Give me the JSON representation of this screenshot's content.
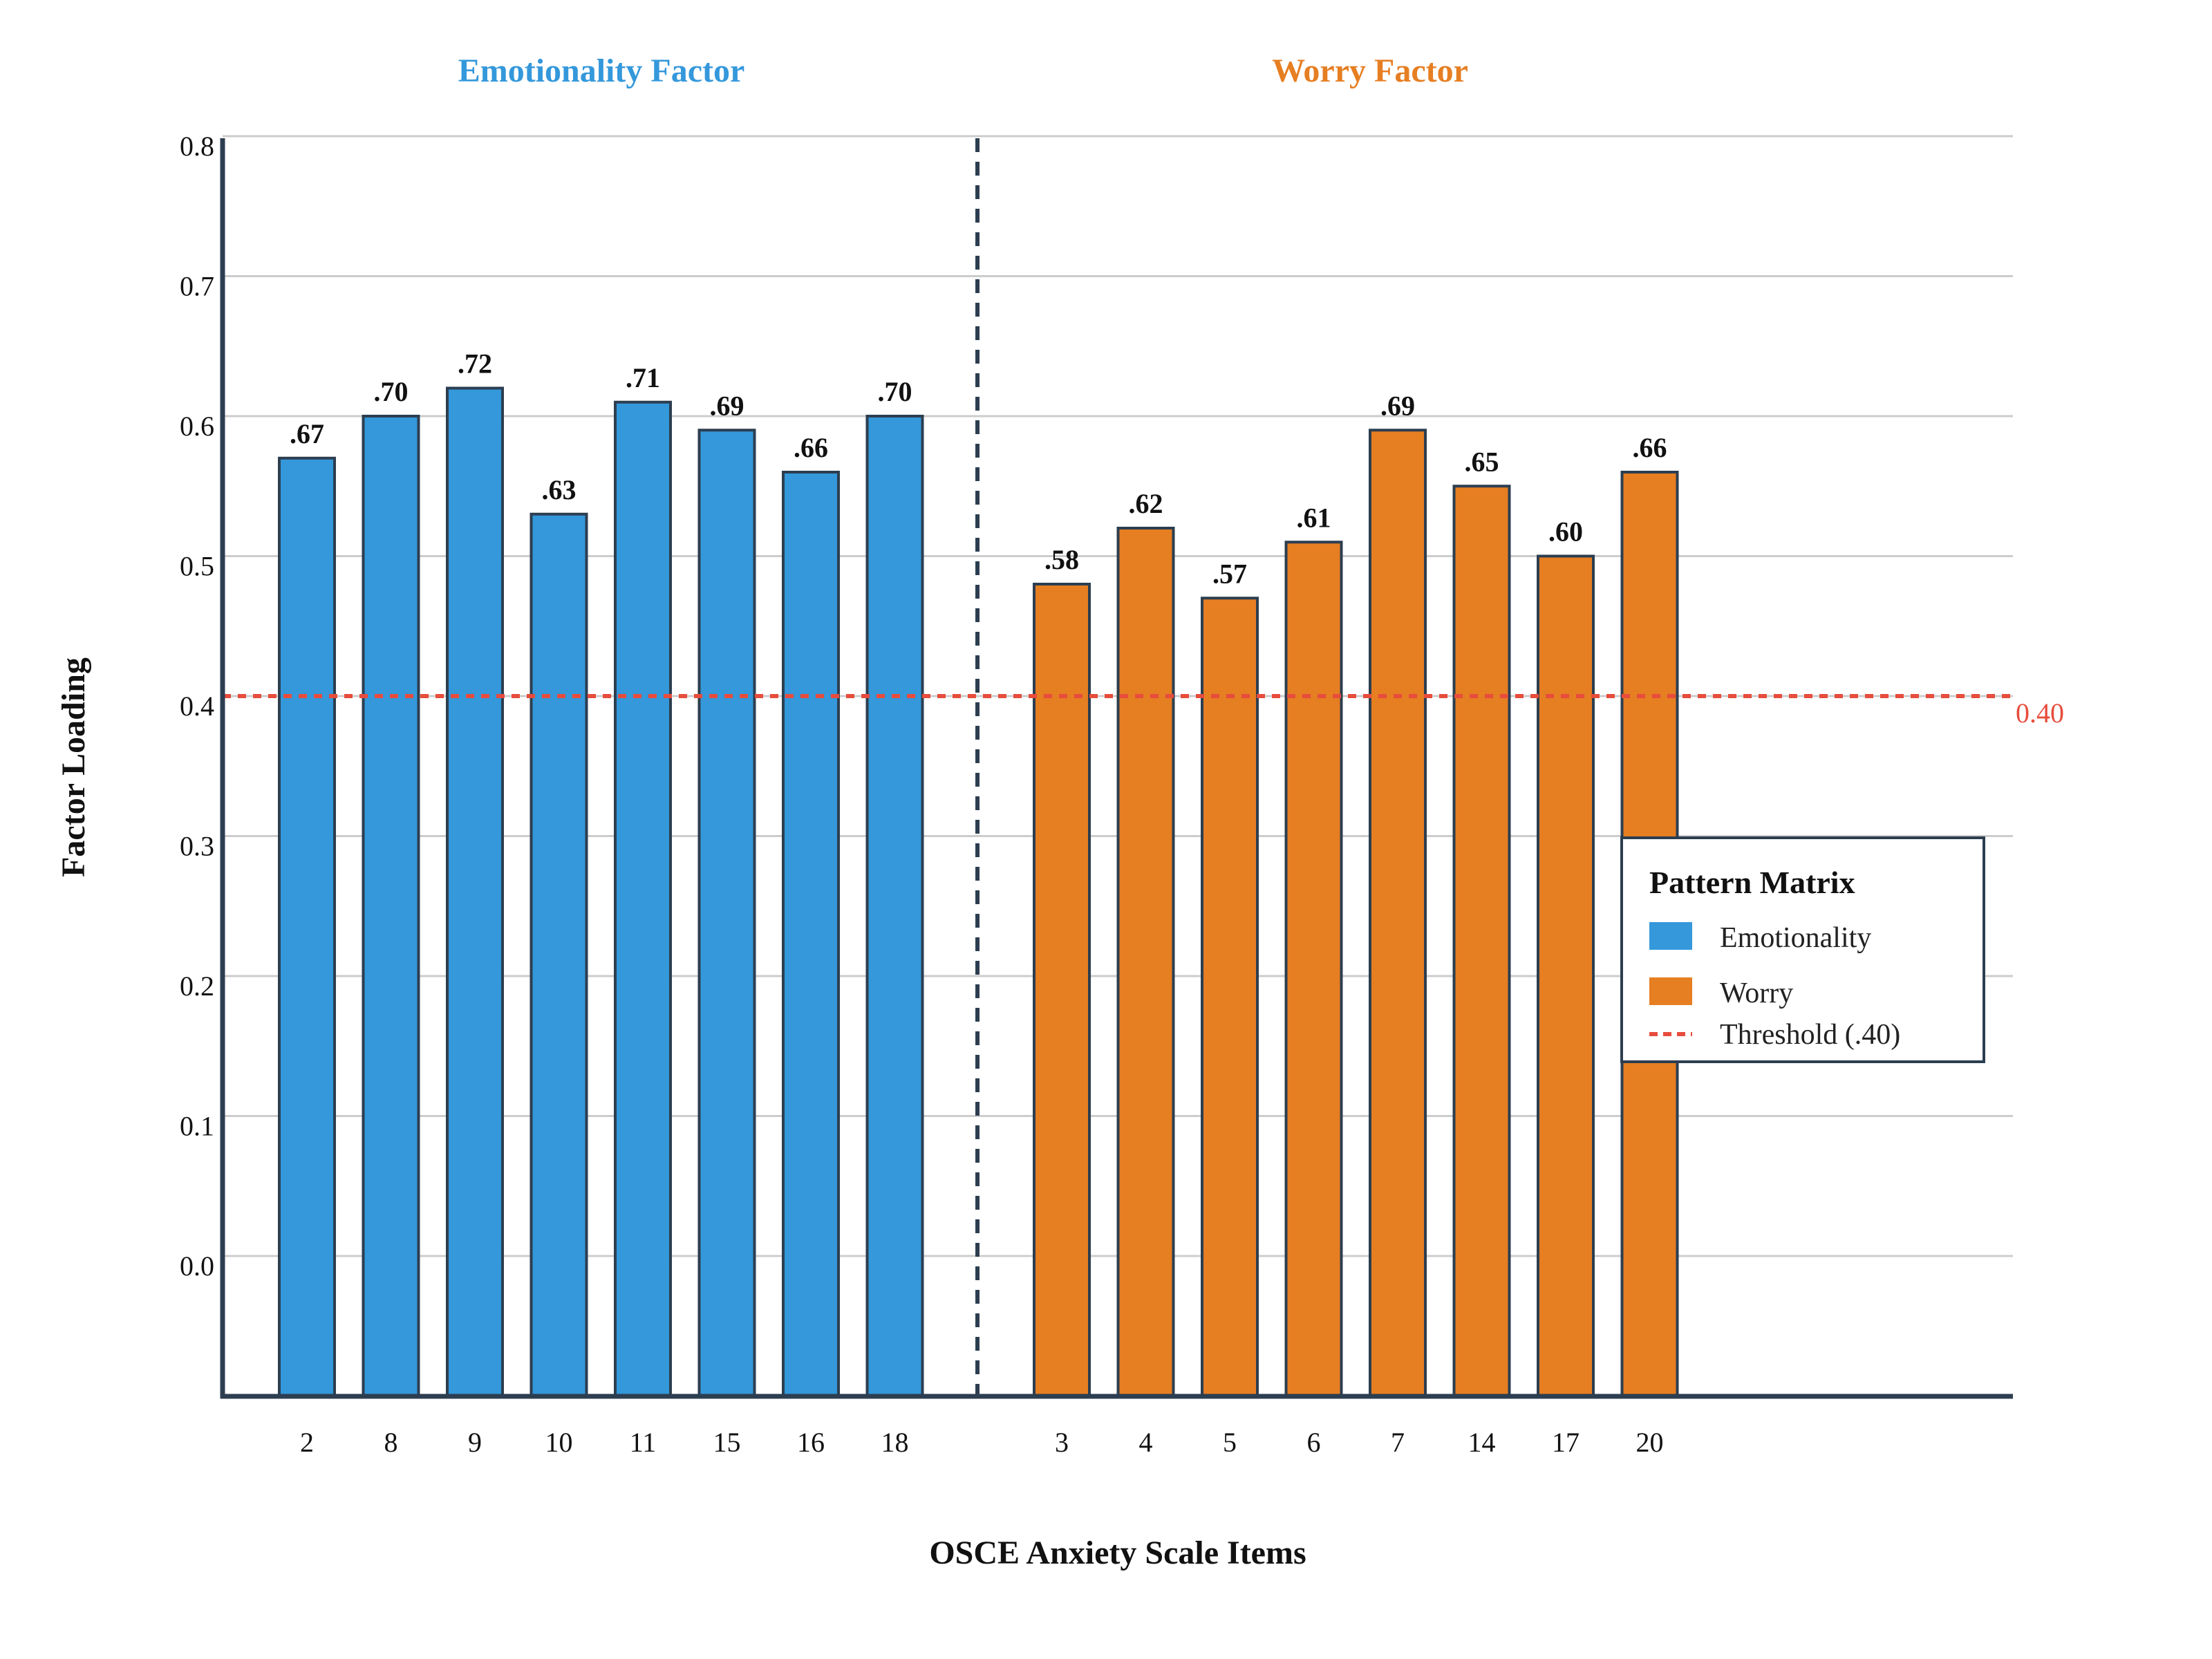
{
  "colors": {
    "emotionality": "#3498db",
    "worry": "#e67e22",
    "threshold": "#e74c3c",
    "axis": "#2c3e50",
    "grid": "#cccccc",
    "bar_edge": "#2c3e50"
  },
  "chart_data": {
    "type": "bar",
    "title": "",
    "xlabel": "OSCE Anxiety Scale Items",
    "ylabel": "Factor Loading",
    "yticks": [
      "0.0",
      "0.1",
      "0.2",
      "0.3",
      "0.4",
      "0.5",
      "0.6",
      "0.7",
      "0.8"
    ],
    "grid": true,
    "legend_position": "right",
    "groups": [
      {
        "title": "Emotionality Factor",
        "series": "Emotionality",
        "color": "#3498db",
        "items": [
          {
            "label": "2",
            "value": 0.67,
            "value_label": ".67"
          },
          {
            "label": "8",
            "value": 0.7,
            "value_label": ".70"
          },
          {
            "label": "9",
            "value": 0.72,
            "value_label": ".72"
          },
          {
            "label": "10",
            "value": 0.63,
            "value_label": ".63"
          },
          {
            "label": "11",
            "value": 0.71,
            "value_label": ".71"
          },
          {
            "label": "15",
            "value": 0.69,
            "value_label": ".69"
          },
          {
            "label": "16",
            "value": 0.66,
            "value_label": ".66"
          },
          {
            "label": "18",
            "value": 0.7,
            "value_label": ".70"
          }
        ]
      },
      {
        "title": "Worry Factor",
        "series": "Worry",
        "color": "#e67e22",
        "items": [
          {
            "label": "3",
            "value": 0.58,
            "value_label": ".58"
          },
          {
            "label": "4",
            "value": 0.62,
            "value_label": ".62"
          },
          {
            "label": "5",
            "value": 0.57,
            "value_label": ".57"
          },
          {
            "label": "6",
            "value": 0.61,
            "value_label": ".61"
          },
          {
            "label": "7",
            "value": 0.69,
            "value_label": ".69"
          },
          {
            "label": "14",
            "value": 0.65,
            "value_label": ".65"
          },
          {
            "label": "17",
            "value": 0.6,
            "value_label": ".60"
          },
          {
            "label": "20",
            "value": 0.66,
            "value_label": ".66"
          }
        ]
      }
    ],
    "threshold": {
      "value": 0.4,
      "label": "0.40"
    },
    "legend": {
      "title": "Pattern Matrix",
      "entries": [
        {
          "label": "Emotionality",
          "kind": "box",
          "color": "#3498db"
        },
        {
          "label": "Worry",
          "kind": "box",
          "color": "#e67e22"
        },
        {
          "label": "Threshold (.40)",
          "kind": "dash",
          "color": "#e74c3c"
        }
      ]
    }
  }
}
